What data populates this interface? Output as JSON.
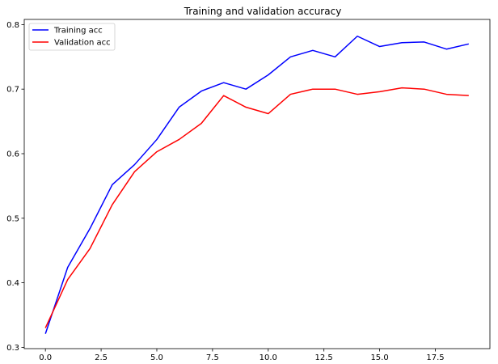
{
  "chart_data": {
    "type": "line",
    "title": "Training and validation accuracy",
    "xlabel": "",
    "ylabel": "",
    "xlim": [
      -0.95,
      19.95
    ],
    "ylim": [
      0.298,
      0.808
    ],
    "x_ticks": [
      0.0,
      2.5,
      5.0,
      7.5,
      10.0,
      12.5,
      15.0,
      17.5
    ],
    "x_tick_labels": [
      "0.0",
      "2.5",
      "5.0",
      "7.5",
      "10.0",
      "12.5",
      "15.0",
      "17.5"
    ],
    "y_ticks": [
      0.3,
      0.4,
      0.5,
      0.6,
      0.7,
      0.8
    ],
    "y_tick_labels": [
      "0.3",
      "0.4",
      "0.5",
      "0.6",
      "0.7",
      "0.8"
    ],
    "grid": false,
    "legend_position": "top-left",
    "x": [
      0,
      1,
      2,
      3,
      4,
      5,
      6,
      7,
      8,
      9,
      10,
      11,
      12,
      13,
      14,
      15,
      16,
      17,
      18,
      19
    ],
    "series": [
      {
        "name": "Training acc",
        "color": "#0000ff",
        "values": [
          0.321,
          0.424,
          0.484,
          0.552,
          0.583,
          0.622,
          0.672,
          0.697,
          0.71,
          0.7,
          0.722,
          0.75,
          0.76,
          0.75,
          0.782,
          0.766,
          0.772,
          0.773,
          0.762,
          0.77
        ]
      },
      {
        "name": "Validation acc",
        "color": "#ff0000",
        "values": [
          0.33,
          0.405,
          0.453,
          0.521,
          0.572,
          0.603,
          0.622,
          0.647,
          0.69,
          0.672,
          0.662,
          0.692,
          0.7,
          0.7,
          0.692,
          0.696,
          0.702,
          0.7,
          0.692,
          0.69
        ]
      }
    ]
  }
}
